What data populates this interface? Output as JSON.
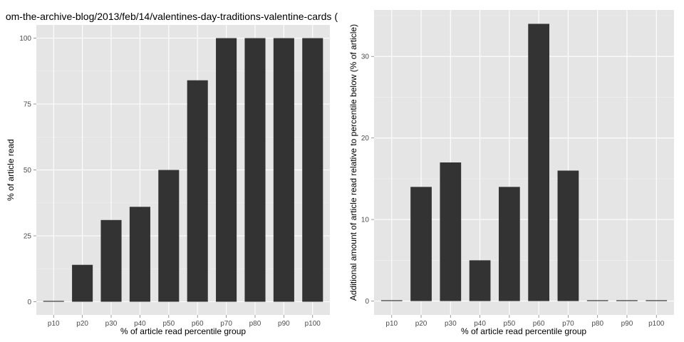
{
  "chart_data": [
    {
      "type": "bar",
      "title": "om-the-archive-blog/2013/feb/14/valentines-day-traditions-valentine-cards (",
      "xlabel": "% of article read percentile group",
      "ylabel": "% of article read",
      "categories": [
        "p10",
        "p20",
        "p30",
        "p40",
        "p50",
        "p60",
        "p70",
        "p80",
        "p90",
        "p100"
      ],
      "values": [
        0,
        14,
        31,
        36,
        50,
        84,
        100,
        100,
        100,
        100
      ],
      "ylim": [
        -5,
        105
      ],
      "yticks": [
        "0",
        "25",
        "50",
        "75",
        "100"
      ],
      "grid": true,
      "bar_color": "#333333",
      "panel_color": "#e5e5e5"
    },
    {
      "type": "bar",
      "title": "",
      "xlabel": "% of article read percentile group",
      "ylabel": "Additional amount of article read relative to percentile below (% of article)",
      "categories": [
        "p10",
        "p20",
        "p30",
        "p40",
        "p50",
        "p60",
        "p70",
        "p80",
        "p90",
        "p100"
      ],
      "values": [
        0,
        14,
        17,
        5,
        14,
        34,
        16,
        0,
        0,
        0
      ],
      "ylim": [
        -1.7,
        35.7
      ],
      "yticks": [
        "0",
        "10",
        "20",
        "30"
      ],
      "grid": true,
      "bar_color": "#333333",
      "panel_color": "#e5e5e5"
    }
  ]
}
